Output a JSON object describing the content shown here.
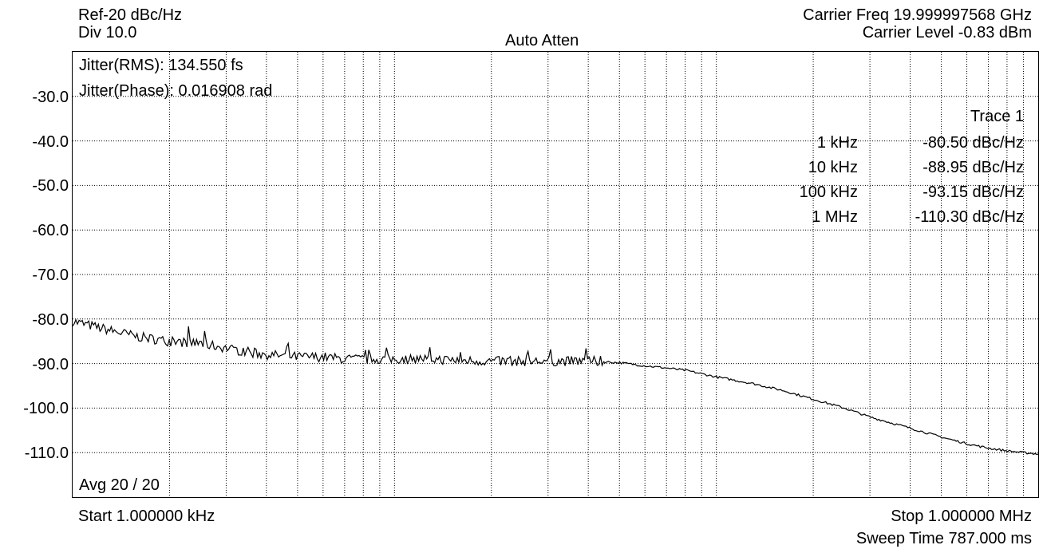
{
  "header": {
    "ref": "Ref-20 dBc/Hz",
    "div": "Div 10.0",
    "atten": "Auto Atten",
    "carrier_freq": "Carrier Freq 19.999997568 GHz",
    "carrier_level": "Carrier Level -0.83 dBm"
  },
  "annotations": {
    "jitter_rms": "Jitter(RMS): 134.550 fs",
    "jitter_phase": "Jitter(Phase): 0.016908 rad",
    "avg": "Avg 20 / 20"
  },
  "footer": {
    "start": "Start 1.000000 kHz",
    "stop": "Stop 1.000000 MHz",
    "sweep": "Sweep Time 787.000 ms"
  },
  "marker_table": {
    "title": "Trace 1",
    "rows": [
      {
        "freq": "1 kHz",
        "value": "-80.50 dBc/Hz"
      },
      {
        "freq": "10 kHz",
        "value": "-88.95 dBc/Hz"
      },
      {
        "freq": "100 kHz",
        "value": "-93.15 dBc/Hz"
      },
      {
        "freq": "1 MHz",
        "value": "-110.30 dBc/Hz"
      }
    ]
  },
  "chart_data": {
    "type": "line",
    "x_scale": "log",
    "x_unit": "Hz",
    "xlim": [
      1000,
      1000000
    ],
    "ylim": [
      -120,
      -20
    ],
    "yticks": [
      "-30.0",
      "-40.0",
      "-50.0",
      "-60.0",
      "-70.0",
      "-80.0",
      "-90.0",
      "-100.0",
      "-110.0"
    ],
    "grid": true,
    "line_color": "#000000",
    "series": [
      {
        "x": [
          1000,
          1300,
          1600,
          2000,
          2500,
          3000,
          3500,
          4000,
          5000,
          6000,
          7000,
          8000,
          10000,
          12000,
          15000,
          20000,
          25000,
          30000,
          40000,
          50000,
          60000,
          70000,
          80000,
          100000,
          130000,
          160000,
          200000,
          250000,
          300000,
          400000,
          500000,
          600000,
          700000,
          800000,
          850000,
          900000,
          1000000
        ],
        "y": [
          -80.5,
          -82.5,
          -84,
          -85,
          -85.5,
          -86.5,
          -87.5,
          -88,
          -88.5,
          -88.5,
          -89,
          -89,
          -89,
          -88.9,
          -89.2,
          -89.5,
          -89.5,
          -89.5,
          -89.4,
          -89.8,
          -90.5,
          -91,
          -91.5,
          -93,
          -94.5,
          -96,
          -98,
          -100,
          -102,
          -104.5,
          -106.5,
          -108,
          -109,
          -109.6,
          -109.8,
          -110,
          -110.3
        ]
      }
    ]
  }
}
